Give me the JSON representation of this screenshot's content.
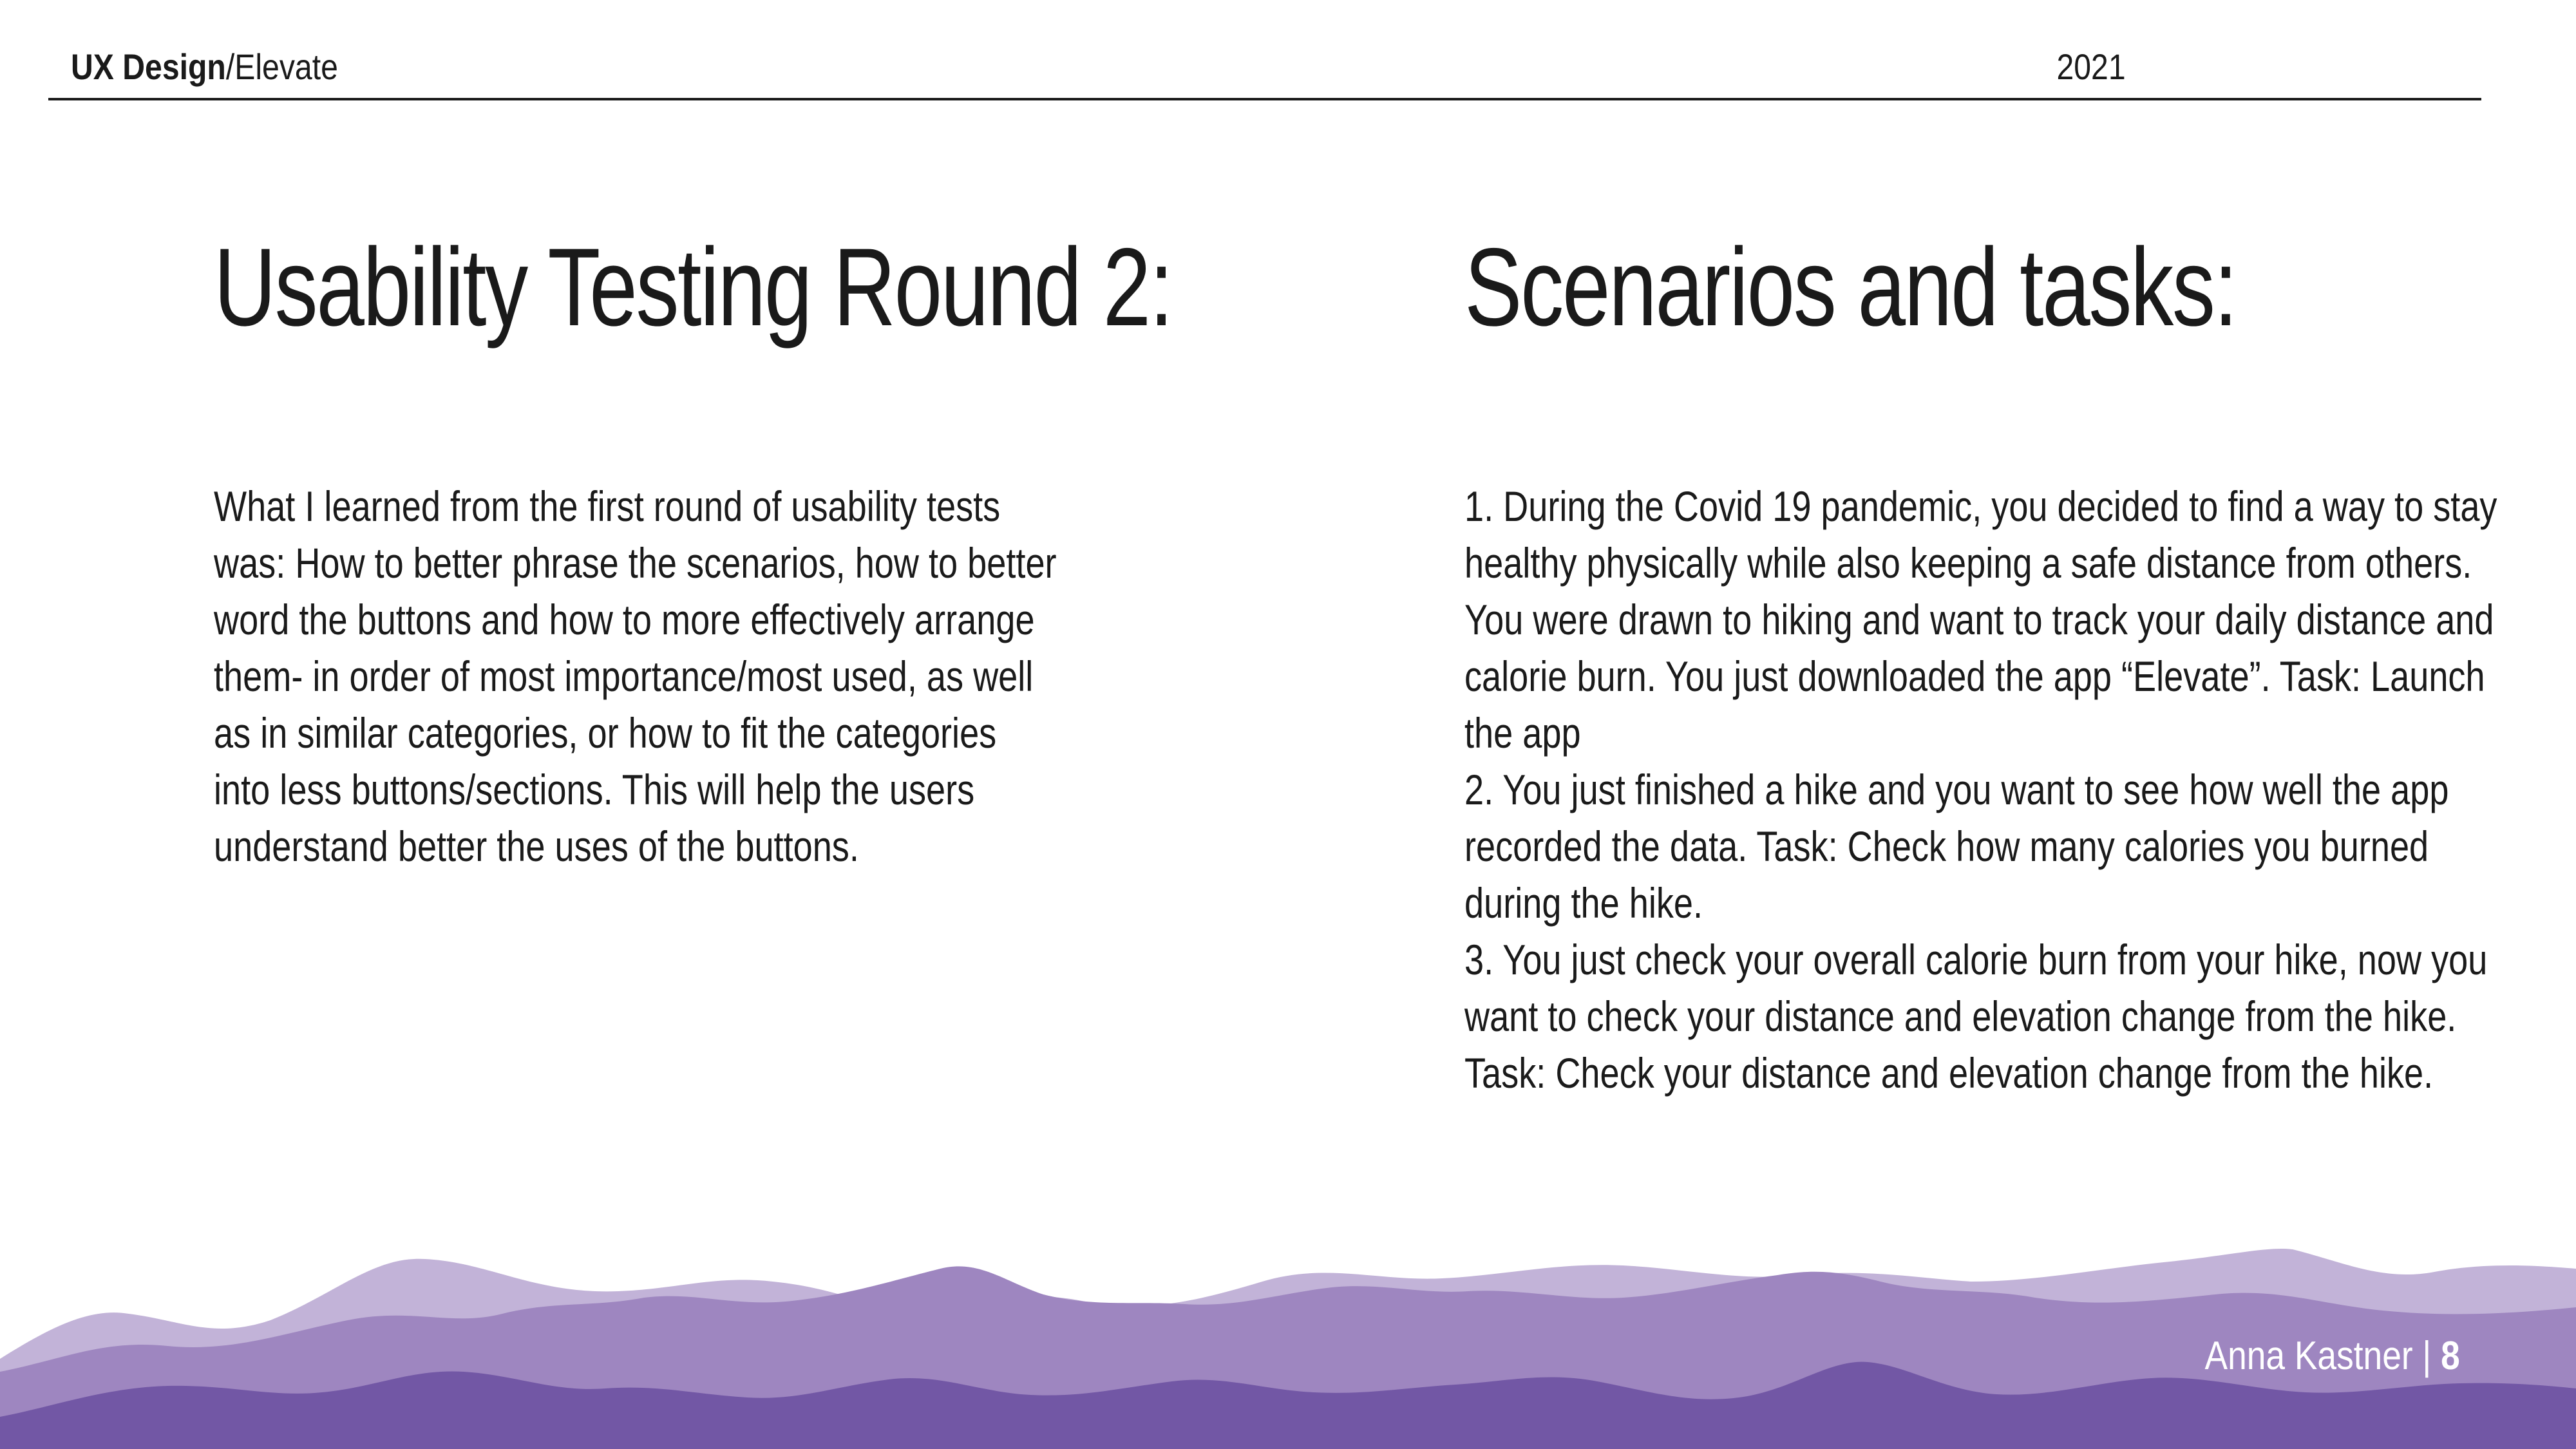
{
  "header": {
    "section_bold": "UX Design",
    "section_rest": "/Elevate",
    "year": "2021"
  },
  "left": {
    "heading": "Usability Testing Round 2:",
    "body": "What I learned from the first round of usability tests was: How to better phrase the scenarios, how to better word the buttons and how to more effectively arrange them- in order of most importance/most used, as well as in similar categories, or how to fit the categories into less buttons/sections. This will help the users understand better the uses of the buttons."
  },
  "right": {
    "heading": "Scenarios and tasks:",
    "items": [
      "1. During the Covid 19 pandemic, you decided to find a way to stay healthy physically while also keeping a safe distance from others. You were drawn to hiking and want to track your daily distance and calorie burn. You just downloaded the app “Elevate”. Task: Launch the app",
      "2. You just finished a hike and you want to see how well the app recorded the data. Task: Check how many calories you burned during the hike.",
      "3. You just check your overall calorie burn from your hike, now you want to check your distance and elevation change from the hike. Task: Check your distance and elevation change from the hike."
    ]
  },
  "footer": {
    "author": "Anna Kastner",
    "separator": " | ",
    "page_number": "8"
  },
  "colors": {
    "mountain_light": "#c2b3d8",
    "mountain_mid": "#9e86c0",
    "mountain_dark": "#7257a5"
  }
}
